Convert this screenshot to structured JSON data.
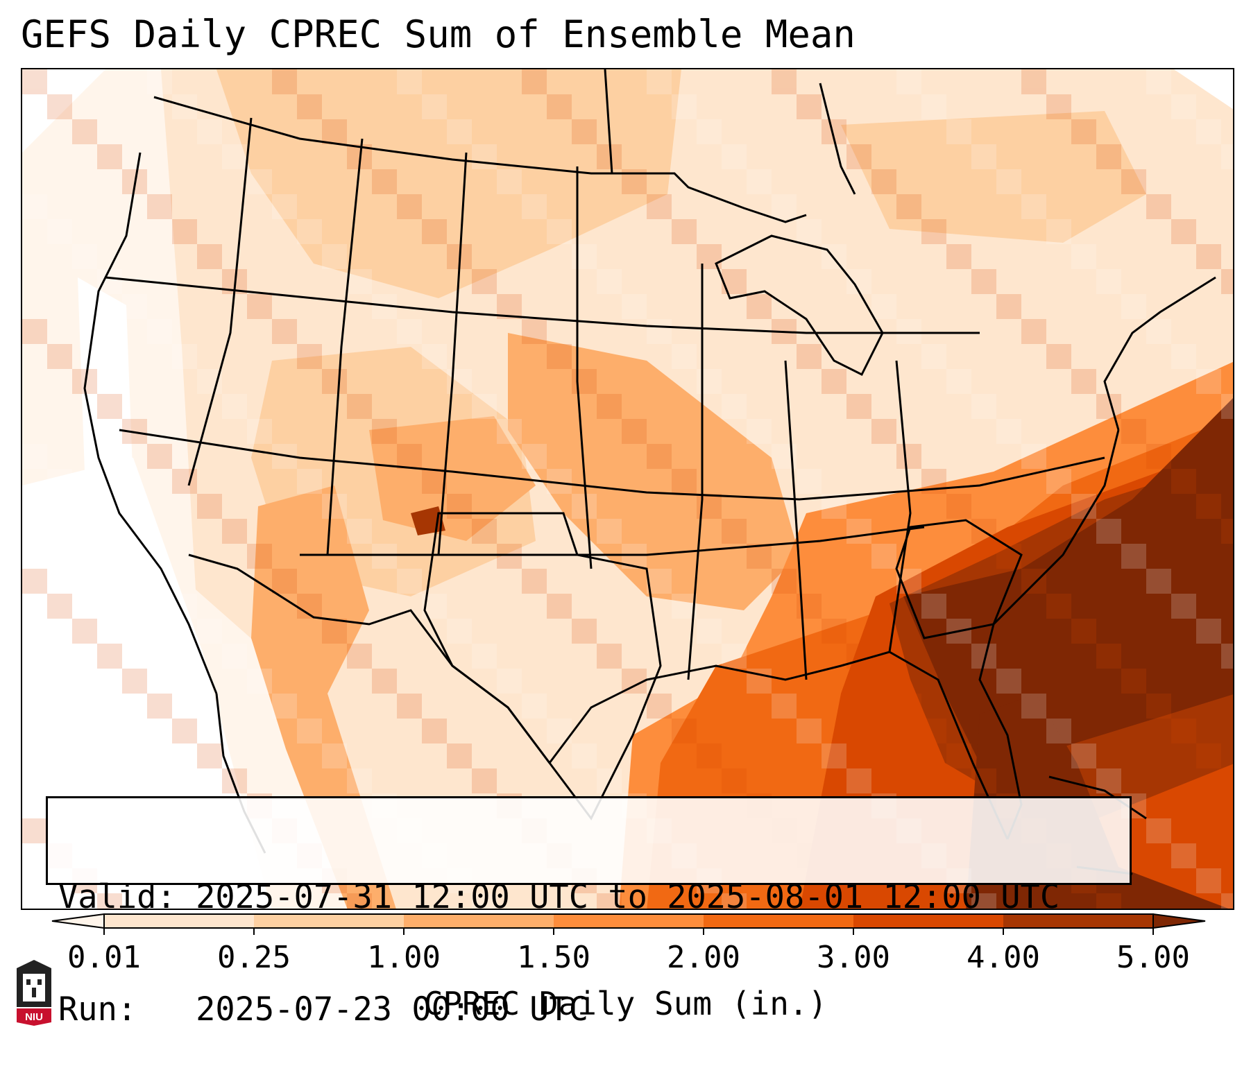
{
  "title": "GEFS Daily CPREC Sum of Ensemble Mean",
  "info": {
    "valid_label": "Valid:",
    "valid_value": "2025-07-31 12:00 UTC to 2025-08-01 12:00 UTC",
    "run_label": "Run:",
    "run_value": "2025-07-23 00:00 UTC"
  },
  "colorbar": {
    "label": "CPREC Daily Sum (in.)",
    "ticks": [
      "0.01",
      "0.25",
      "1.00",
      "1.50",
      "2.00",
      "3.00",
      "4.00",
      "5.00"
    ],
    "colors": [
      "#fee6ce",
      "#fdd0a2",
      "#fdae6b",
      "#fd8d3c",
      "#f16913",
      "#d94801",
      "#a63603"
    ],
    "under_color": "#fff5eb",
    "over_color": "#7f2704"
  },
  "logo": {
    "text": "NIU",
    "color": "#c8102e"
  },
  "colors": {
    "background": "#fff5eb",
    "border": "#000000"
  }
}
